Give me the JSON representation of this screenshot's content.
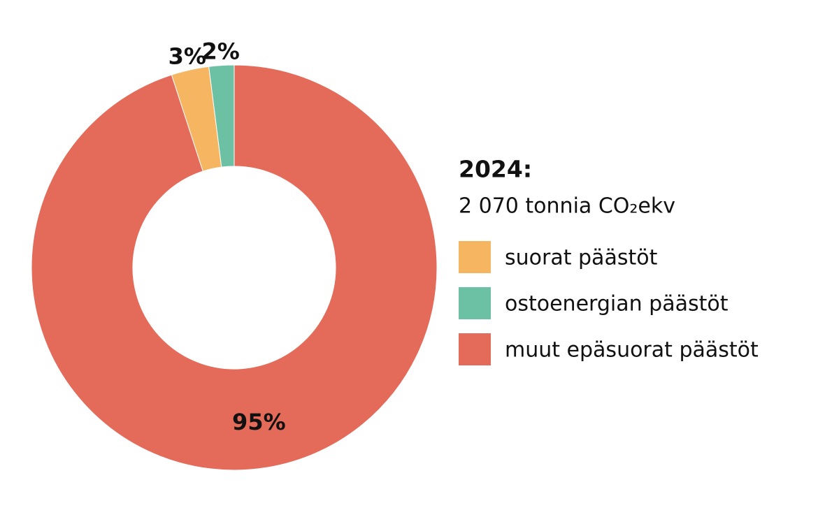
{
  "chart_data": {
    "type": "donut",
    "title": "2024:",
    "subtitle": "2 070 tonnia CO₂ekv",
    "categories": [
      "suorat päästöt",
      "ostoenergian päästöt",
      "muut epäsuorat päästöt"
    ],
    "values": [
      3,
      2,
      95
    ],
    "value_labels": [
      "3%",
      "2%",
      "95%"
    ],
    "colors": [
      "#f6b560",
      "#6cc1a5",
      "#e46b5a"
    ],
    "legend": "right"
  }
}
